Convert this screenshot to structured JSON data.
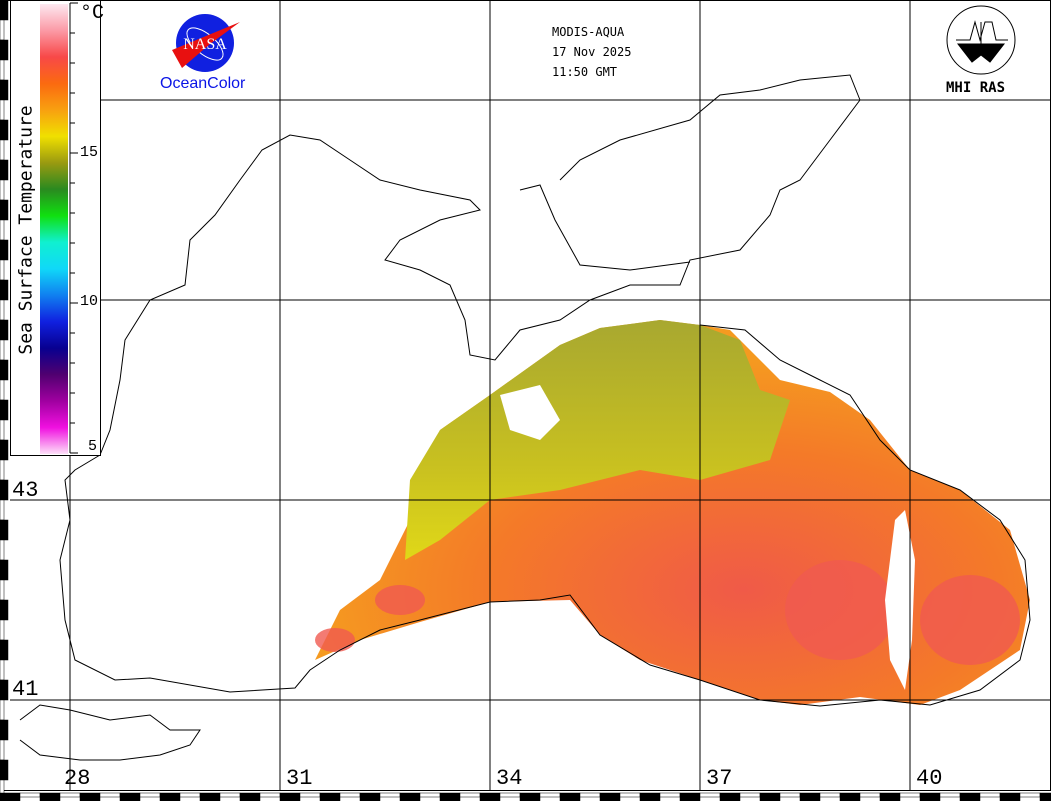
{
  "header": {
    "sensor": "MODIS-AQUA",
    "date": "17 Nov 2025",
    "time": "11:50 GMT"
  },
  "logos": {
    "nasa": "NASA",
    "oceancolor": "OceanColor",
    "mhi": "MHI RAS"
  },
  "legend": {
    "title": "Sea Surface Temperature",
    "unit": "°C",
    "ticks": [
      "15",
      "10",
      "5"
    ],
    "range": [
      5,
      20
    ],
    "colors": [
      "#fde8f0",
      "#fb9aa6",
      "#f84848",
      "#fb6a10",
      "#f8a010",
      "#f0e000",
      "#9a9a10",
      "#2a8a20",
      "#10e010",
      "#10f0d0",
      "#10d8f8",
      "#1080f0",
      "#1020e0",
      "#080090",
      "#500070",
      "#a000a0",
      "#f010e0",
      "#fde0f8"
    ]
  },
  "axes": {
    "latitudes": [
      "43",
      "41"
    ],
    "longitudes": [
      "28",
      "31",
      "34",
      "37",
      "40"
    ]
  },
  "colors": {
    "warm": "#f47a28",
    "hot": "#f05a50",
    "mid": "#e8c020",
    "cool": "#a8a828"
  }
}
